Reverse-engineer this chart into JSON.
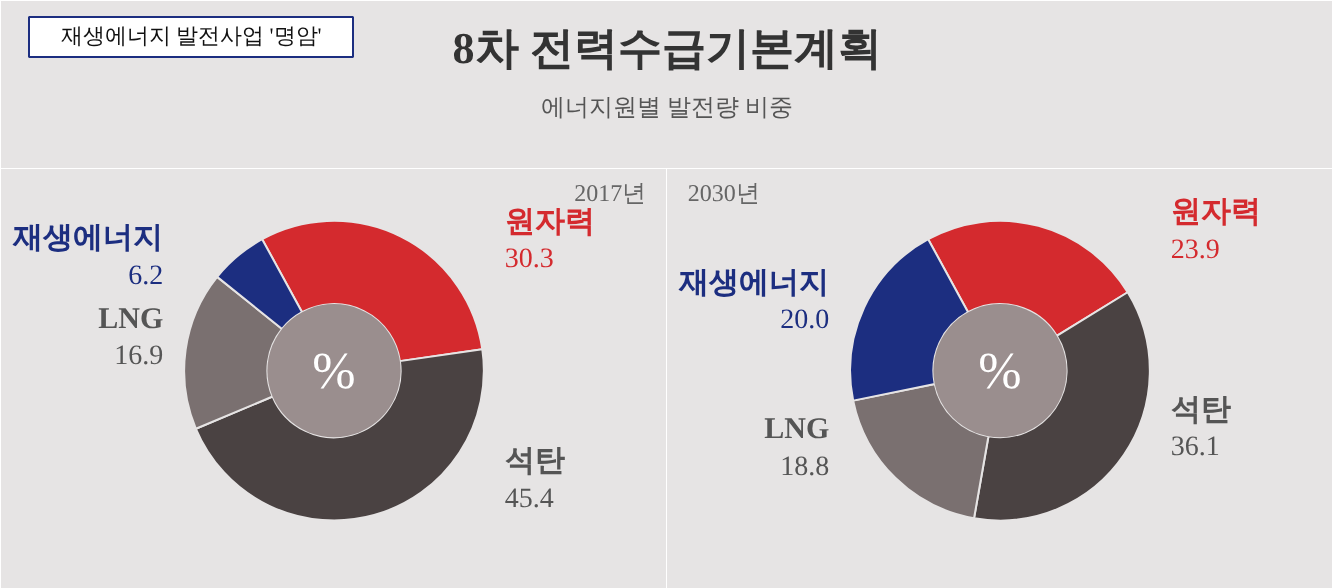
{
  "chart_data": [
    {
      "type": "donut",
      "title": "2017년",
      "categories": [
        "원자력",
        "석탄",
        "LNG",
        "재생에너지"
      ],
      "values": [
        30.3,
        45.4,
        16.9,
        6.2
      ],
      "colors": [
        "#d42a2e",
        "#4a4242",
        "#7a7070",
        "#1c2e80"
      ],
      "value_labels": [
        "30.3",
        "45.4",
        "16.9",
        "6.2"
      ],
      "annotations": [
        "8차 전력수급기본계획",
        "에너지원별 발전량 비중",
        "재생에너지 발전사업 '명암'",
        "%"
      ]
    },
    {
      "type": "donut",
      "title": "2030년",
      "categories": [
        "원자력",
        "석탄",
        "LNG",
        "재생에너지"
      ],
      "values": [
        23.9,
        36.1,
        18.8,
        20.0
      ],
      "colors": [
        "#d42a2e",
        "#4a4242",
        "#7a7070",
        "#1c2e80"
      ],
      "value_labels": [
        "23.9",
        "36.1",
        "18.8",
        "20.0"
      ],
      "annotations": [
        "%"
      ]
    }
  ]
}
